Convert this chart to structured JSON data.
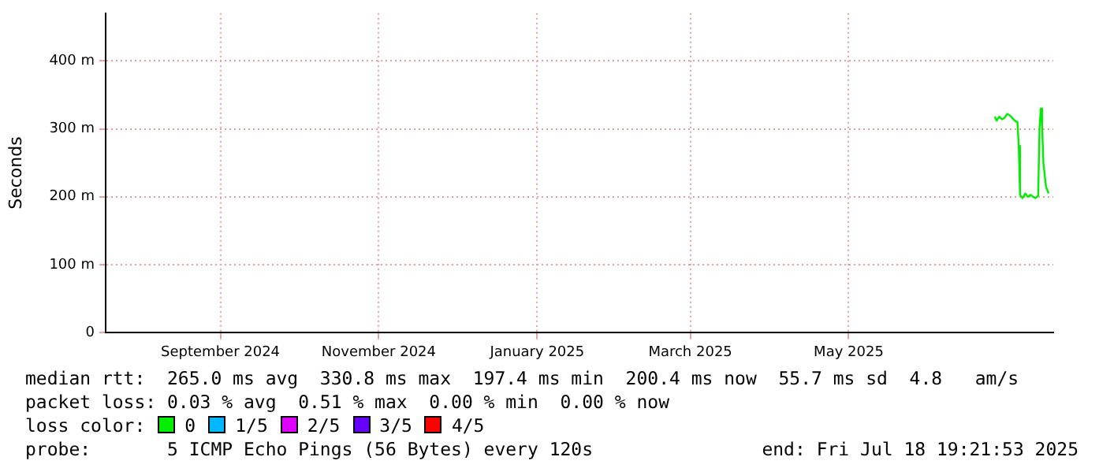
{
  "chart_data": {
    "type": "line",
    "ylabel": "Seconds",
    "x": [
      "2025-06-26T06:00",
      "2025-06-27T00:00",
      "2025-06-28T00:00",
      "2025-06-29T00:00",
      "2025-06-30T00:00",
      "2025-07-01T00:00",
      "2025-07-02T00:00",
      "2025-07-03T00:00",
      "2025-07-04T00:00",
      "2025-07-05T00:00",
      "2025-07-05T12:00",
      "2025-07-06T00:00",
      "2025-07-07T00:00",
      "2025-07-08T00:00",
      "2025-07-09T00:00",
      "2025-07-10T00:00",
      "2025-07-11T00:00",
      "2025-07-12T00:00",
      "2025-07-13T00:00",
      "2025-07-13T12:00",
      "2025-07-14T00:00",
      "2025-07-14T12:00",
      "2025-07-15T00:00",
      "2025-07-16T00:00",
      "2025-07-17T00:00"
    ],
    "series": [
      {
        "name": "0",
        "color": "#00ee00",
        "values": [
          318,
          312,
          318,
          314,
          316,
          322,
          320,
          316,
          312,
          310,
          275,
          203,
          198,
          205,
          200,
          203,
          200,
          198,
          202,
          300,
          330,
          305,
          250,
          215,
          205
        ]
      },
      {
        "name": "1/5",
        "color": "#00b8ff",
        "values": [
          null,
          null,
          null,
          null,
          null,
          null,
          null,
          null,
          null,
          null,
          null,
          null,
          null,
          null,
          null,
          null,
          null,
          null,
          null,
          null,
          null,
          null,
          null,
          null,
          null
        ]
      },
      {
        "name": "2/5",
        "color": "#dd00ff",
        "values": [
          null,
          null,
          null,
          null,
          null,
          null,
          null,
          null,
          null,
          null,
          null,
          null,
          null,
          null,
          null,
          null,
          null,
          null,
          null,
          null,
          null,
          null,
          null,
          null,
          null
        ]
      },
      {
        "name": "3/5",
        "color": "#6600ff",
        "values": [
          null,
          null,
          null,
          null,
          null,
          null,
          null,
          null,
          null,
          null,
          null,
          null,
          null,
          null,
          null,
          null,
          null,
          null,
          null,
          null,
          null,
          null,
          null,
          null,
          null
        ]
      },
      {
        "name": "4/5",
        "color": "#ff0000",
        "values": [
          null,
          null,
          null,
          null,
          null,
          null,
          null,
          null,
          null,
          null,
          null,
          null,
          null,
          null,
          null,
          null,
          null,
          null,
          null,
          null,
          null,
          null,
          null,
          null,
          null
        ]
      }
    ],
    "legend": "bottom",
    "legend_title": "loss color:",
    "xlim": [
      "2024-07-18T19:21",
      "2025-07-18T19:21"
    ],
    "xticks": [
      {
        "value": "2024-09-01",
        "label": "September 2024"
      },
      {
        "value": "2024-11-01",
        "label": "November 2024"
      },
      {
        "value": "2025-01-01",
        "label": "January 2025"
      },
      {
        "value": "2025-03-01",
        "label": "March 2025"
      },
      {
        "value": "2025-05-01",
        "label": "May 2025"
      }
    ],
    "ylim": [
      0,
      470
    ],
    "yticks": [
      0,
      {
        "value": 100,
        "label": "100 m"
      },
      {
        "value": 200,
        "label": "200 m"
      },
      {
        "value": 300,
        "label": "300 m"
      },
      {
        "value": 400,
        "label": "400 m"
      }
    ],
    "grid": true,
    "line_style": "solid",
    "marker": "none",
    "annotations": [
      "median rtt:  265.0 ms avg  330.8 ms max  197.4 ms min  200.4 ms now  55.7 ms sd  4.8   am/s",
      "packet loss: 0.03 % avg  0.51 % max  0.00 % min  0.00 % now",
      "probe:       5 ICMP Echo Pings (56 Bytes) every 120s",
      "end: Fri Jul 18 19:21:53 2025"
    ]
  }
}
